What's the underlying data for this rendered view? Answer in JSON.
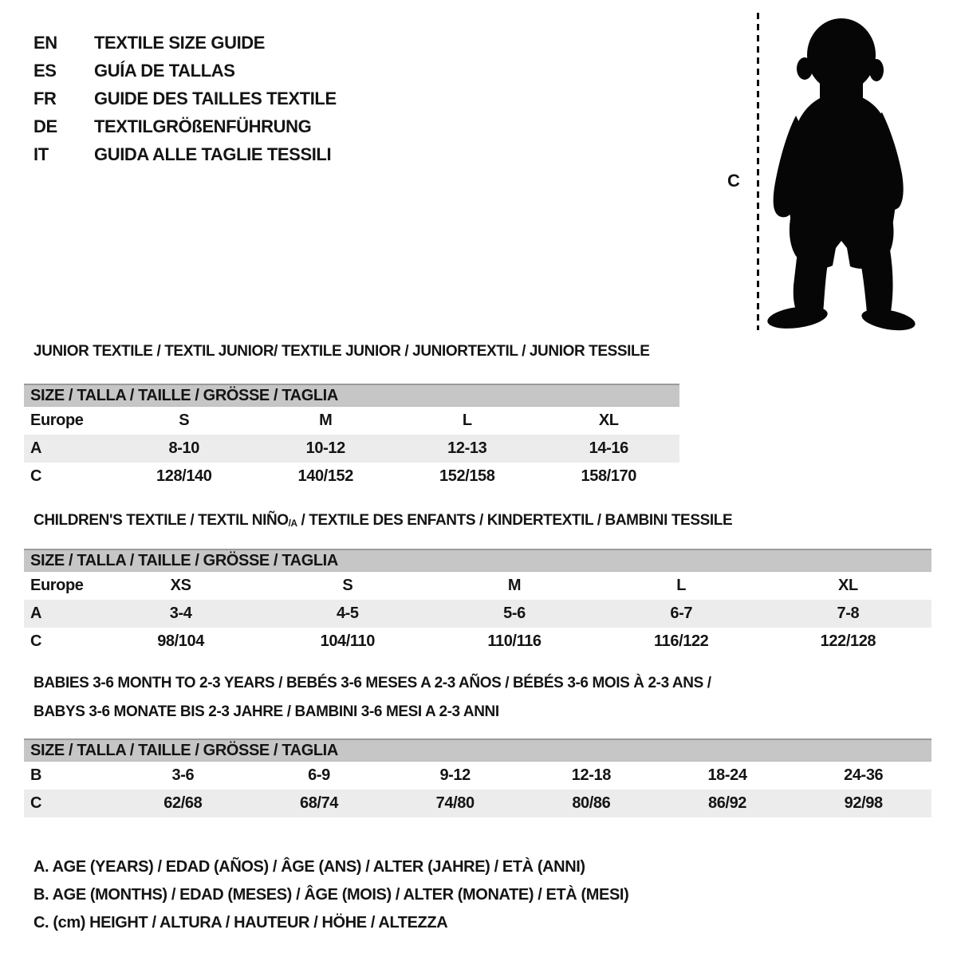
{
  "languages": [
    {
      "code": "EN",
      "title": "TEXTILE SIZE GUIDE"
    },
    {
      "code": "ES",
      "title": "GUÍA DE TALLAS"
    },
    {
      "code": "FR",
      "title": "GUIDE DES TAILLES TEXTILE"
    },
    {
      "code": "DE",
      "title": "TEXTILGRÖßENFÜHRUNG"
    },
    {
      "code": "IT",
      "title": "GUIDA ALLE TAGLIE TESSILI"
    }
  ],
  "figure": {
    "measure_label": "C"
  },
  "sections": [
    {
      "title": "JUNIOR TEXTILE / TEXTIL JUNIOR/ TEXTILE JUNIOR / JUNIORTEXTIL / JUNIOR TESSILE",
      "table": {
        "header": "SIZE / TALLA / TAILLE / GRÖSSE / TAGLIA",
        "rows": [
          {
            "label": "Europe",
            "cells": [
              "S",
              "M",
              "L",
              "XL"
            ],
            "shaded": false
          },
          {
            "label": "A",
            "cells": [
              "8-10",
              "10-12",
              "12-13",
              "14-16"
            ],
            "shaded": true
          },
          {
            "label": "C",
            "cells": [
              "128/140",
              "140/152",
              "152/158",
              "158/170"
            ],
            "shaded": false
          }
        ]
      }
    },
    {
      "title_parts": {
        "before": "CHILDREN'S TEXTILE / TEXTIL NIÑO",
        "sub": "/A",
        "after": " / TEXTILE DES ENFANTS / KINDERTEXTIL / BAMBINI TESSILE"
      },
      "table": {
        "header": "SIZE / TALLA / TAILLE / GRÖSSE / TAGLIA",
        "rows": [
          {
            "label": "Europe",
            "cells": [
              "XS",
              "S",
              "M",
              "L",
              "XL"
            ],
            "shaded": false
          },
          {
            "label": "A",
            "cells": [
              "3-4",
              "4-5",
              "5-6",
              "6-7",
              "7-8"
            ],
            "shaded": true
          },
          {
            "label": "C",
            "cells": [
              "98/104",
              "104/110",
              "110/116",
              "116/122",
              "122/128"
            ],
            "shaded": false
          }
        ]
      }
    },
    {
      "title_lines": [
        "BABIES 3-6 MONTH TO 2-3 YEARS / BEBÉS 3-6 MESES A 2-3 AÑOS / BÉBÉS 3-6 MOIS À 2-3 ANS /",
        "BABYS 3-6 MONATE BIS 2-3 JAHRE / BAMBINI 3-6 MESI A 2-3 ANNI"
      ],
      "table": {
        "header": "SIZE / TALLA / TAILLE / GRÖSSE / TAGLIA",
        "rows": [
          {
            "label": "B",
            "cells": [
              "3-6",
              "6-9",
              "9-12",
              "12-18",
              "18-24",
              "24-36"
            ],
            "shaded": false
          },
          {
            "label": "C",
            "cells": [
              "62/68",
              "68/74",
              "74/80",
              "80/86",
              "86/92",
              "92/98"
            ],
            "shaded": true
          }
        ]
      }
    }
  ],
  "legend": [
    "A. AGE (YEARS) / EDAD (AÑOS) / ÂGE (ANS) / ALTER (JAHRE) / ETÀ (ANNI)",
    "B. AGE (MONTHS) / EDAD (MESES) / ÂGE (MOIS) / ALTER (MONATE) / ETÀ (MESI)",
    "C. (cm) HEIGHT / ALTURA / HAUTEUR / HÖHE / ALTEZZA"
  ],
  "colors": {
    "header_bar": "#c6c6c6",
    "header_bar_edge": "#9a9a9a",
    "shaded_row": "#ececec",
    "text": "#141414",
    "silhouette": "#060606"
  }
}
